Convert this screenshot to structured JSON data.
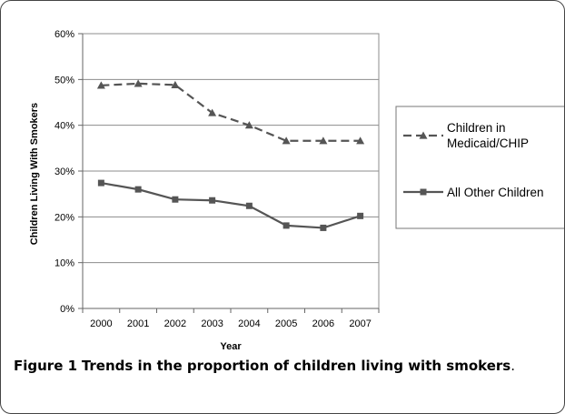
{
  "chart_data": {
    "type": "line",
    "categories": [
      "2000",
      "2001",
      "2002",
      "2003",
      "2004",
      "2005",
      "2006",
      "2007"
    ],
    "series": [
      {
        "name": "Children in Medicaid/CHIP",
        "values": [
          48.7,
          49.1,
          48.8,
          42.7,
          40.0,
          36.6,
          36.6,
          36.6
        ],
        "color": "#555555",
        "dashed": true,
        "marker": "triangle"
      },
      {
        "name": "All Other Children",
        "values": [
          27.4,
          26.0,
          23.8,
          23.6,
          22.4,
          18.1,
          17.6,
          20.2
        ],
        "color": "#555555",
        "dashed": false,
        "marker": "square"
      }
    ],
    "xlabel": "Year",
    "ylabel": "Children Living With Smokers",
    "ylim": [
      0,
      60
    ],
    "yticks": [
      "0%",
      "10%",
      "20%",
      "30%",
      "40%",
      "50%",
      "60%"
    ],
    "grid": true,
    "legend": "right"
  },
  "caption": {
    "label": "Figure 1",
    "text": "Trends in the proportion of children living with smokers",
    "end": "."
  }
}
